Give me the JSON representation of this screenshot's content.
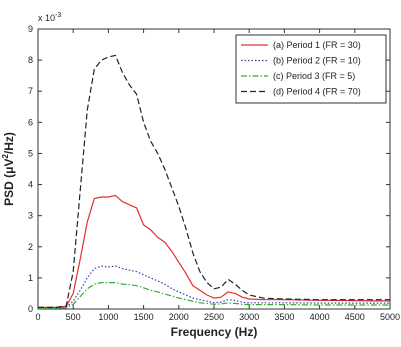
{
  "chart_data": {
    "type": "line",
    "xlabel": "Frequency (Hz)",
    "ylabel_main": "PSD (μV",
    "ylabel_sup": "2",
    "ylabel_tail": "/Hz)",
    "y_multiplier_base": "x 10",
    "y_multiplier_exp": "-3",
    "xlim": [
      0,
      5000
    ],
    "ylim": [
      0,
      9
    ],
    "x_ticks": [
      "0",
      "500",
      "1000",
      "1500",
      "2000",
      "2500",
      "3000",
      "3500",
      "4000",
      "4500",
      "5000"
    ],
    "y_ticks": [
      "0",
      "1",
      "2",
      "3",
      "4",
      "5",
      "6",
      "7",
      "8",
      "9"
    ],
    "grid": false,
    "legend_position": "top-right",
    "series": [
      {
        "name": "(a) Period 1 (FR = 30)",
        "color": "#e03030",
        "dash": "solid",
        "x": [
          0,
          250,
          400,
          500,
          600,
          700,
          800,
          900,
          1000,
          1100,
          1200,
          1300,
          1400,
          1500,
          1600,
          1700,
          1800,
          1900,
          2000,
          2100,
          2200,
          2300,
          2400,
          2500,
          2600,
          2700,
          2800,
          2900,
          3000,
          3200,
          3500,
          4000,
          4500,
          4800,
          5000
        ],
        "y": [
          0.05,
          0.05,
          0.08,
          0.5,
          1.6,
          2.8,
          3.55,
          3.6,
          3.6,
          3.65,
          3.45,
          3.35,
          3.25,
          2.7,
          2.55,
          2.3,
          2.15,
          1.85,
          1.5,
          1.15,
          0.75,
          0.6,
          0.45,
          0.35,
          0.38,
          0.55,
          0.5,
          0.38,
          0.32,
          0.3,
          0.3,
          0.28,
          0.27,
          0.26,
          0.26
        ]
      },
      {
        "name": "(b) Period 2 (FR = 10)",
        "color": "#3a3ab0",
        "dash": "dotted",
        "x": [
          0,
          250,
          400,
          500,
          600,
          700,
          800,
          900,
          1000,
          1100,
          1200,
          1300,
          1400,
          1500,
          1600,
          1700,
          1800,
          1900,
          2000,
          2100,
          2200,
          2300,
          2400,
          2500,
          2600,
          2700,
          2800,
          2900,
          3000,
          3200,
          3500,
          4000,
          4500,
          4800,
          5000
        ],
        "y": [
          0.03,
          0.03,
          0.05,
          0.25,
          0.6,
          1.0,
          1.3,
          1.38,
          1.35,
          1.38,
          1.3,
          1.25,
          1.2,
          1.1,
          1.0,
          0.9,
          0.8,
          0.65,
          0.55,
          0.45,
          0.35,
          0.3,
          0.25,
          0.2,
          0.22,
          0.3,
          0.28,
          0.22,
          0.2,
          0.2,
          0.2,
          0.19,
          0.19,
          0.19,
          0.19
        ]
      },
      {
        "name": "(c) Period 3 (FR = 5)",
        "color": "#33aa33",
        "dash": "dashdot",
        "x": [
          0,
          250,
          400,
          500,
          600,
          700,
          800,
          900,
          1000,
          1100,
          1200,
          1300,
          1400,
          1500,
          1600,
          1700,
          1800,
          1900,
          2000,
          2100,
          2200,
          2300,
          2400,
          2500,
          2600,
          2700,
          2800,
          2900,
          3000,
          3200,
          3500,
          4000,
          4500,
          4800,
          5000
        ],
        "y": [
          0.02,
          0.02,
          0.04,
          0.15,
          0.4,
          0.65,
          0.8,
          0.85,
          0.85,
          0.85,
          0.8,
          0.78,
          0.75,
          0.68,
          0.6,
          0.55,
          0.48,
          0.42,
          0.35,
          0.3,
          0.25,
          0.2,
          0.18,
          0.15,
          0.16,
          0.2,
          0.18,
          0.15,
          0.14,
          0.14,
          0.14,
          0.13,
          0.13,
          0.13,
          0.13
        ]
      },
      {
        "name": "(d) Period 4 (FR = 70)",
        "color": "#222222",
        "dash": "dashed",
        "x": [
          0,
          250,
          400,
          500,
          600,
          700,
          800,
          900,
          1000,
          1100,
          1200,
          1300,
          1400,
          1500,
          1600,
          1700,
          1800,
          1900,
          2000,
          2100,
          2200,
          2300,
          2400,
          2500,
          2600,
          2700,
          2800,
          2900,
          3000,
          3200,
          3500,
          4000,
          4500,
          4800,
          5000
        ],
        "y": [
          0.05,
          0.05,
          0.1,
          1.2,
          3.8,
          6.4,
          7.7,
          8.0,
          8.1,
          8.15,
          7.6,
          7.2,
          6.9,
          6.0,
          5.4,
          5.0,
          4.5,
          3.9,
          3.3,
          2.6,
          1.8,
          1.2,
          0.85,
          0.65,
          0.7,
          0.95,
          0.8,
          0.6,
          0.45,
          0.35,
          0.32,
          0.3,
          0.3,
          0.3,
          0.3
        ]
      }
    ]
  }
}
